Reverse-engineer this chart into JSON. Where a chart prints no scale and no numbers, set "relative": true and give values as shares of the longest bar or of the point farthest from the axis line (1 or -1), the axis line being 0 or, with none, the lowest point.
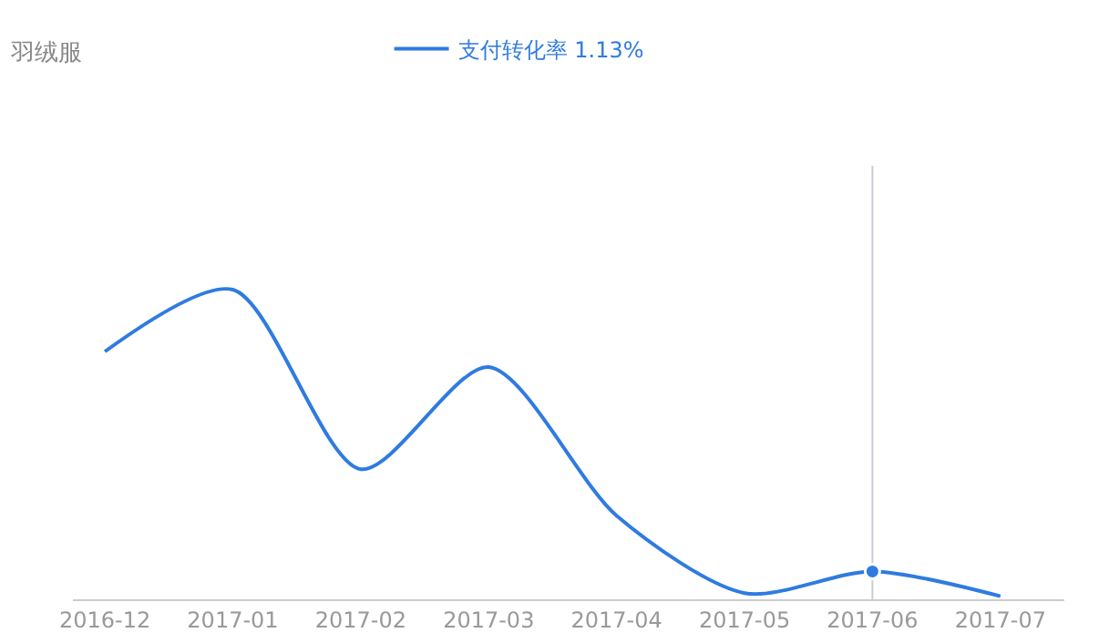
{
  "chart_data": {
    "type": "line",
    "title": "羽绒服",
    "relative": true,
    "categories": [
      "2016-12",
      "2017-01",
      "2017-02",
      "2017-03",
      "2017-04",
      "2017-05",
      "2017-06",
      "2017-07"
    ],
    "series": [
      {
        "name": "支付转化率 1.13%",
        "color": "#2f7be0",
        "values": [
          0.8,
          1.0,
          0.42,
          0.75,
          0.27,
          0.02,
          0.09,
          0.01
        ],
        "marker": "none"
      },
      {
        "type": "scatter",
        "color": "#2f7be0",
        "values": [
          null,
          null,
          null,
          null,
          null,
          null,
          0.09,
          null
        ],
        "marker": "circle"
      }
    ],
    "ref_lines": [
      {
        "axis": "x",
        "value": "2017-06",
        "color": "#c8ccd4"
      }
    ],
    "legend": "top"
  }
}
